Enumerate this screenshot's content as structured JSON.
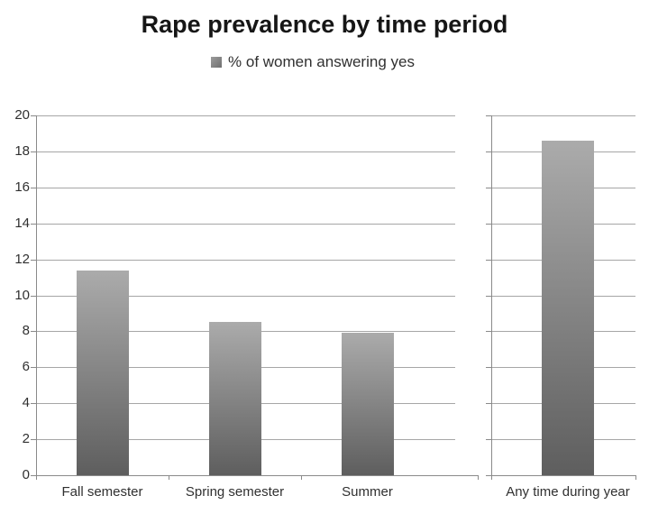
{
  "chart_data": {
    "type": "bar",
    "title": "Rape prevalence by time period",
    "legend_label": "% of women answering yes",
    "legend_position": "top",
    "grid": true,
    "ylim": [
      0,
      20
    ],
    "ytick_step": 2,
    "yticks": [
      0,
      2,
      4,
      6,
      8,
      10,
      12,
      14,
      16,
      18,
      20
    ],
    "panels": [
      {
        "categories": [
          "Fall semester",
          "Spring semester",
          "Summer"
        ],
        "values": [
          11.4,
          8.5,
          7.9
        ]
      },
      {
        "categories": [
          "Any time during year"
        ],
        "values": [
          18.6
        ]
      }
    ],
    "colors": {
      "bar_gradient_top": "#ababab",
      "bar_gradient_bottom": "#5e5e5e",
      "gridline": "#a6a6a6",
      "axis": "#8a8a8a",
      "label_text": "#303030",
      "title_text": "#161616"
    }
  }
}
